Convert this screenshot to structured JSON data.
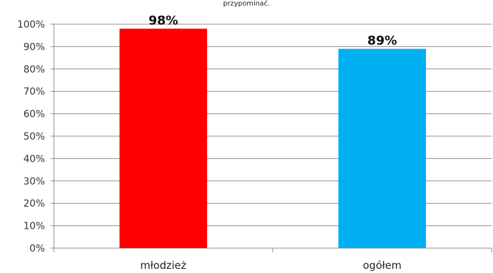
{
  "chart_data": {
    "type": "bar",
    "title": "przypominać.",
    "categories": [
      "młodzież",
      "ogółem"
    ],
    "values": [
      98,
      89
    ],
    "data_labels": [
      "98%",
      "89%"
    ],
    "colors": [
      "#ff0000",
      "#00b0f0"
    ],
    "ylim": [
      0,
      100
    ],
    "y_ticks": [
      0,
      10,
      20,
      30,
      40,
      50,
      60,
      70,
      80,
      90,
      100
    ],
    "y_tick_labels": [
      "0%",
      "10%",
      "20%",
      "30%",
      "40%",
      "50%",
      "60%",
      "70%",
      "80%",
      "90%",
      "100%"
    ],
    "xlabel": "",
    "ylabel": "",
    "grid": true,
    "legend": "none"
  }
}
